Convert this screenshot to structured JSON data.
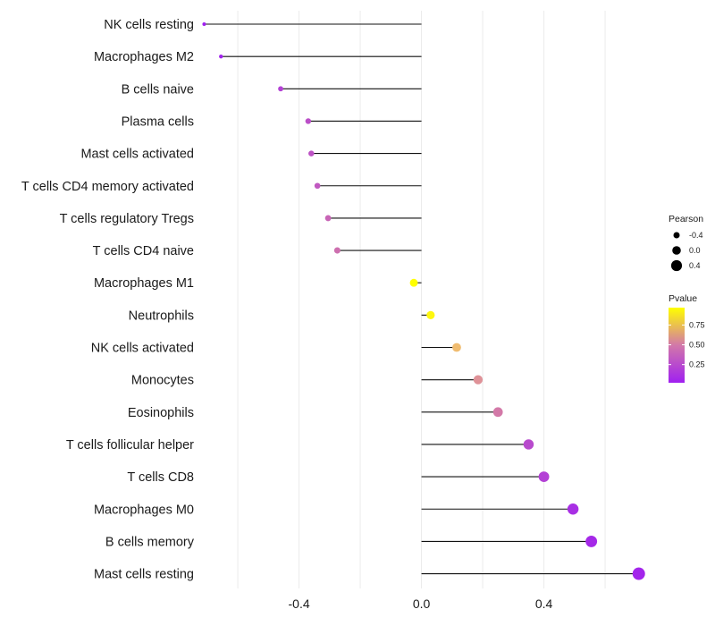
{
  "chart_data": {
    "type": "lollipop",
    "title": "",
    "xlabel": "",
    "ylabel": "",
    "xlim": [
      -0.72,
      0.74
    ],
    "xticks": [
      {
        "value": -0.4,
        "label": "-0.4"
      },
      {
        "value": 0.0,
        "label": "0.0"
      },
      {
        "value": 0.4,
        "label": "0.4"
      }
    ],
    "minor_gridlines": [
      -0.6,
      -0.2,
      0.2,
      0.6
    ],
    "categories": [
      "NK cells resting",
      "Macrophages M2",
      "B cells naive",
      "Plasma cells",
      "Mast cells activated",
      "T cells CD4 memory activated",
      "T cells regulatory  Tregs ",
      "T cells CD4 naive",
      "Macrophages M1",
      "Neutrophils",
      "NK cells activated",
      "Monocytes",
      "Eosinophils",
      "T cells follicular helper",
      "T cells CD8",
      "Macrophages M0",
      "B cells memory",
      "Mast cells resting"
    ],
    "series": [
      {
        "name": "Pearson",
        "values": [
          -0.71,
          -0.655,
          -0.46,
          -0.37,
          -0.36,
          -0.34,
          -0.305,
          -0.275,
          -0.025,
          0.03,
          0.115,
          0.185,
          0.25,
          0.35,
          0.4,
          0.495,
          0.555,
          0.71
        ]
      },
      {
        "name": "Pvalue",
        "values": [
          0.02,
          0.04,
          0.2,
          0.28,
          0.3,
          0.33,
          0.4,
          0.45,
          0.97,
          0.95,
          0.78,
          0.62,
          0.5,
          0.25,
          0.2,
          0.1,
          0.07,
          0.05
        ]
      }
    ],
    "legend_size": {
      "title": "Pearson",
      "entries": [
        {
          "value": -0.4,
          "label": "-0.4"
        },
        {
          "value": 0.0,
          "label": "0.0"
        },
        {
          "value": 0.4,
          "label": "0.4"
        }
      ]
    },
    "legend_color": {
      "title": "Pvalue",
      "range": [
        0.02,
        0.97
      ],
      "ticks": [
        {
          "value": 0.75,
          "label": "0.75"
        },
        {
          "value": 0.5,
          "label": "0.50"
        },
        {
          "value": 0.25,
          "label": "0.25"
        }
      ],
      "low_color": "#a020f0",
      "high_color": "#ffff00"
    },
    "legend_position": "right",
    "grid": true
  }
}
